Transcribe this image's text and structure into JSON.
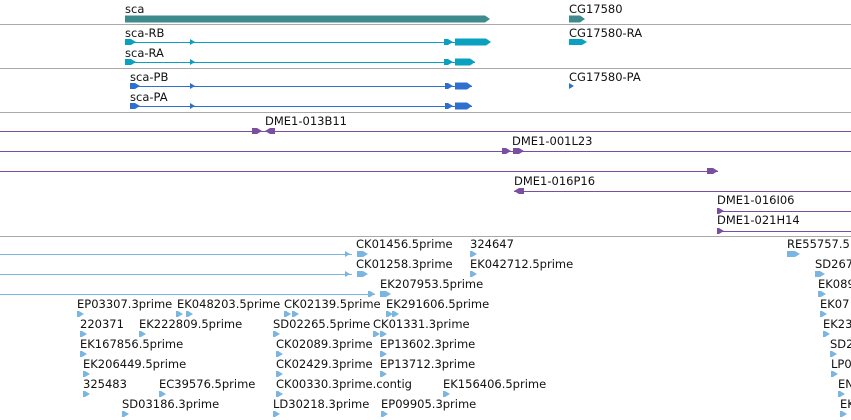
{
  "colors": {
    "gene": "#3f8a8c",
    "transcript_ra": "#0aa0c0",
    "protein": "#2f6fd0",
    "bac": "#7a4fa0",
    "est": "#7ab6e0",
    "divider": "#a9a9a9",
    "label": "#111111"
  },
  "gene_track": {
    "genes": [
      "sca",
      "CG17580"
    ]
  },
  "transcript_track": {
    "transcripts": [
      "sca-RB",
      "sca-RA",
      "CG17580-RA"
    ]
  },
  "protein_track": {
    "proteins": [
      "sca-PB",
      "sca-PA",
      "CG17580-PA"
    ]
  },
  "bac_track": {
    "clones": [
      "DME1-013B11",
      "DME1-001L23",
      "DME1-016P16",
      "DME1-016I06",
      "DME1-021H14"
    ]
  },
  "est_track": {
    "labels": [
      "CK01456.5prime",
      "324647",
      "CK01258.3prime",
      "EK042712.5prime",
      "RE55757.5",
      "SD267",
      "EK207953.5prime",
      "EK089",
      "EP03307.3prime",
      "EK048203.5prime",
      "CK02139.5prime",
      "EK291606.5prime",
      "EK07",
      "220371",
      "EK222809.5prime",
      "SD02265.5prime",
      "CK01331.3prime",
      "EK23",
      "EK167856.5prime",
      "CK02089.3prime",
      "EP13602.3prime",
      "SD2",
      "EK206449.5prime",
      "CK02429.3prime",
      "EP13712.3prime",
      "LP0",
      "325483",
      "EC39576.5prime",
      "CK00330.3prime.contig",
      "EK156406.5prime",
      "EN",
      "SD03186.3prime",
      "LD30218.3prime",
      "EP09905.3prime",
      "EK"
    ]
  }
}
